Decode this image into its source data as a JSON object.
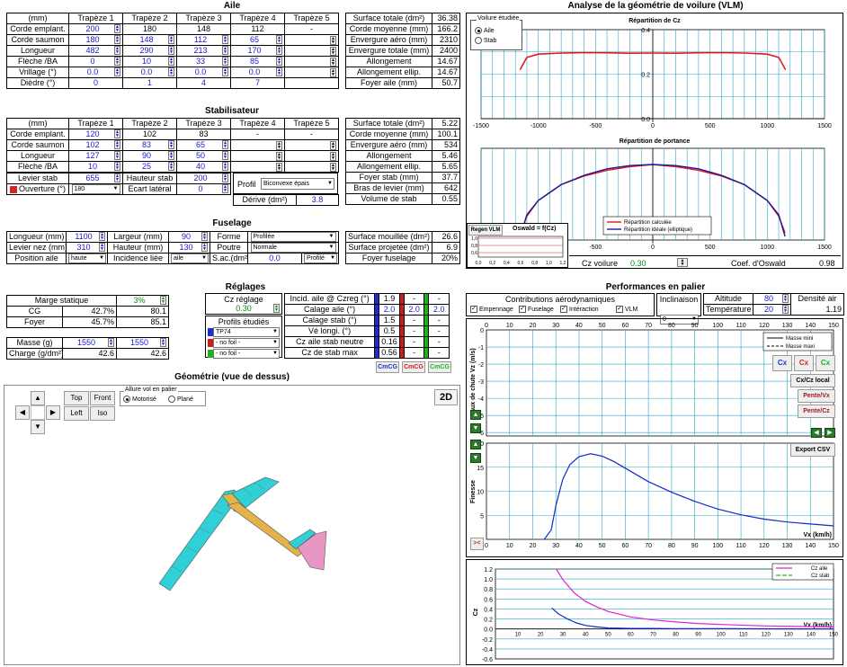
{
  "aile": {
    "title": "Aile",
    "headers": [
      "(mm)",
      "Trapèze 1",
      "Trapèze 2",
      "Trapèze 3",
      "Trapèze 4",
      "Trapèze 5"
    ],
    "rows": [
      {
        "label": "Corde emplant.",
        "values": [
          "200",
          "180",
          "148",
          "112",
          "-"
        ]
      },
      {
        "label": "Corde saumon",
        "values": [
          "180",
          "148",
          "112",
          "65",
          ""
        ]
      },
      {
        "label": "Longueur",
        "values": [
          "482",
          "290",
          "213",
          "170",
          ""
        ]
      },
      {
        "label": "Flèche /BA",
        "values": [
          "0",
          "10",
          "33",
          "85",
          ""
        ]
      },
      {
        "label": "Vrillage (°)",
        "values": [
          "0.0",
          "0.0",
          "0.0",
          "0.0",
          ""
        ]
      },
      {
        "label": "Dièdre (°)",
        "values": [
          "0",
          "1",
          "4",
          "7",
          ""
        ]
      }
    ],
    "summary": [
      [
        "Surface totale (dm²)",
        "36.38"
      ],
      [
        "Corde moyenne (mm)",
        "166.2"
      ],
      [
        "Envergure aéro (mm)",
        "2310"
      ],
      [
        "Envergure totale (mm)",
        "2400"
      ],
      [
        "Allongement",
        "14.67"
      ],
      [
        "Allongement ellip.",
        "14.67"
      ],
      [
        "Foyer aile (mm)",
        "50.7"
      ]
    ]
  },
  "stab": {
    "title": "Stabilisateur",
    "headers": [
      "(mm)",
      "Trapèze 1",
      "Trapèze 2",
      "Trapèze 3",
      "Trapèze 4",
      "Trapèze 5"
    ],
    "rows": [
      {
        "label": "Corde emplant.",
        "values": [
          "120",
          "102",
          "83",
          "-",
          "-"
        ]
      },
      {
        "label": "Corde saumon",
        "values": [
          "102",
          "83",
          "65",
          "",
          ""
        ]
      },
      {
        "label": "Longueur",
        "values": [
          "127",
          "90",
          "50",
          "",
          ""
        ]
      },
      {
        "label": "Flèche /BA",
        "values": [
          "10",
          "25",
          "40",
          "",
          ""
        ]
      }
    ],
    "levier_label": "Levier stab",
    "levier_value": "655",
    "hauteur_label": "Hauteur stab",
    "hauteur_value": "200",
    "ouverture_label": "Ouverture (°)",
    "ouverture_value": "180",
    "ecart_label": "Ecart latéral",
    "ecart_value": "0",
    "profil_label": "Profil",
    "profil_value": "Biconvexe épais",
    "derive_label": "Dérive (dm²)",
    "derive_value": "3.8",
    "summary": [
      [
        "Surface totale (dm²)",
        "5.22"
      ],
      [
        "Corde moyenne (mm)",
        "100.1"
      ],
      [
        "Envergure aéro (mm)",
        "534"
      ],
      [
        "Allongement",
        "5.46"
      ],
      [
        "Allongement ellip.",
        "5.65"
      ],
      [
        "Foyer stab (mm)",
        "37.7"
      ],
      [
        "Bras de levier (mm)",
        "642"
      ],
      [
        "Volume de stab",
        "0.55"
      ]
    ]
  },
  "fuselage": {
    "title": "Fuselage",
    "longueur_label": "Longueur (mm)",
    "longueur_value": "1100",
    "largeur_label": "Largeur (mm)",
    "largeur_value": "90",
    "forme_label": "Forme",
    "forme_value": "Profilée",
    "levier_label": "Levier nez (mm)",
    "levier_value": "310",
    "hauteur_label": "Hauteur (mm)",
    "hauteur_value": "130",
    "poutre_label": "Poutre",
    "poutre_value": "Normale",
    "position_label": "Position aile",
    "position_value": "haute",
    "incidence_label": "Incidence liée",
    "incidence_value": "aile",
    "sac_label": "S.ac.(dm²)",
    "sac_value": "0.0",
    "sac_sel": "Profilé",
    "summary": [
      [
        "Surface mouillée (dm²)",
        "26.6"
      ],
      [
        "Surface projetée (dm²)",
        "6.9"
      ],
      [
        "Foyer fuselage",
        "20%"
      ]
    ]
  },
  "statique": {
    "marge_label": "Marge statique",
    "marge_value": "3%",
    "cg_label": "CG",
    "cg_pct": "42.7%",
    "cg_mm": "80.1",
    "foyer_label": "Foyer",
    "foyer_pct": "45.7%",
    "foyer_mm": "85.1",
    "masse_label": "Masse (g)",
    "masse1": "1550",
    "masse2": "1550",
    "charge_label": "Charge (g/dm²)",
    "charge1": "42.6",
    "charge2": "42.6"
  },
  "reglages": {
    "title": "Réglages",
    "cz_label": "Cz réglage",
    "cz_value": "0.30",
    "profils_label": "Profils étudiés",
    "profils": [
      "TP74",
      "- no foil -",
      "- no foil -"
    ],
    "rows": [
      [
        "Incid. aile @ Czreg (°)",
        "1.9",
        "-",
        "-"
      ],
      [
        "Calage aile (°)",
        "2.0",
        "2.0",
        "2.0"
      ],
      [
        "Calage stab (°)",
        "1.5",
        "-",
        "-"
      ],
      [
        "Vé longi. (°)",
        "0.5",
        "-",
        "-"
      ],
      [
        "Cz aile stab neutre",
        "0.16",
        "-",
        "-"
      ],
      [
        "Cz de stab max",
        "0.56",
        "-",
        "-"
      ]
    ],
    "cmcg": [
      "CmCG",
      "CmCG",
      "CmCG"
    ]
  },
  "geometrie": {
    "title": "Géométrie (vue de dessus)",
    "views": [
      "Top",
      "Front",
      "Left",
      "Iso"
    ],
    "allure_label": "Allure vol en palier",
    "motorise": "Motorisé",
    "plane": "Plané",
    "mode": "2D"
  },
  "vlm": {
    "title": "Analyse de la géométrie de voilure (VLM)",
    "voilure_label": "Voilure étudiée",
    "opt_aile": "Aile",
    "opt_stab": "Stab",
    "cz_title": "Répartition de Cz",
    "portance_title": "Répartition de portance",
    "leg_calc": "Répartition calculée",
    "leg_ideal": "Répartition idéale (elliptique)",
    "regen": "Regen VLM",
    "oswald_fn": "Oswald = f(Cz)",
    "cz_voilure_label": "Cz voilure",
    "cz_voilure_value": "0.30",
    "oswald_label": "Coef. d'Oswald",
    "oswald_value": "0.98",
    "x_ticks": [
      "-1500",
      "-1000",
      "-500",
      "0",
      "500",
      "1000",
      "1500"
    ],
    "cz_y_ticks": [
      "0.4",
      "0.2",
      "0.0"
    ],
    "mini_x": [
      "0,0",
      "0,2",
      "0,4",
      "0,6",
      "0,8",
      "1,0",
      "1,2"
    ],
    "mini_y": [
      "1,0",
      "0,8",
      "0,6"
    ]
  },
  "perf": {
    "title": "Performances en palier",
    "contrib_label": "Contributions aérodynamiques",
    "contribs": [
      "Empennage",
      "Fuselage",
      "Intéraction",
      "VLM"
    ],
    "inclinaison_label": "Inclinaison",
    "inclinaison_value": "0",
    "altitude_label": "Altitude",
    "altitude_value": "80",
    "densite_label": "Densité air",
    "densite_value": "1.19",
    "temperature_label": "Température",
    "temperature_value": "20",
    "vz_ylabel": "Taux de chute Vz (m/s)",
    "vx_label": "Vx (km/h)",
    "leg_mini": "Masse mini",
    "leg_maxi": "Masse maxi",
    "x_ticks": [
      "0",
      "10",
      "20",
      "30",
      "40",
      "50",
      "60",
      "70",
      "80",
      "90",
      "100",
      "110",
      "120",
      "130",
      "140",
      "150"
    ],
    "vz_y_ticks": [
      "0",
      "-1",
      "-2",
      "-3",
      "-4",
      "-5",
      "-6"
    ],
    "fin_ylabel": "Finesse",
    "fin_y_ticks": [
      "20",
      "15",
      "10",
      "5",
      "0"
    ],
    "cz_ylabel": "Cz",
    "cz_y_ticks": [
      "1.2",
      "1.0",
      "0.8",
      "0.6",
      "0.4",
      "0.2",
      "0.0",
      "-0.2",
      "-0.4",
      "-0.6"
    ],
    "leg_cz_aile": "Cz aile",
    "leg_cz_stab": "Cz stab",
    "buttons": [
      "Cx",
      "Cx",
      "Cx",
      "Cx/Cz local",
      "Pente/Vx",
      "Pente/Cz",
      "Export CSV"
    ]
  },
  "chart_data": [
    {
      "type": "line",
      "title": "Répartition de Cz",
      "xlim": [
        -1500,
        1500
      ],
      "ylim": [
        0,
        0.4
      ],
      "series": [
        {
          "x": [
            -1160,
            -1100,
            -1000,
            -800,
            -600,
            -400,
            -200,
            0,
            200,
            400,
            600,
            800,
            1000,
            1100,
            1160
          ],
          "values": [
            0.22,
            0.275,
            0.29,
            0.295,
            0.297,
            0.296,
            0.294,
            0.295,
            0.294,
            0.296,
            0.297,
            0.295,
            0.29,
            0.275,
            0.22
          ]
        }
      ]
    },
    {
      "type": "line",
      "title": "Répartition de portance",
      "xlim": [
        -1500,
        1500
      ],
      "series": [
        {
          "name": "Répartition calculée",
          "x": [
            -1155,
            -1100,
            -1000,
            -800,
            -600,
            -400,
            -200,
            0,
            200,
            400,
            600,
            800,
            1000,
            1100,
            1155
          ],
          "values": [
            0.05,
            0.28,
            0.5,
            0.72,
            0.84,
            0.92,
            0.97,
            1.0,
            0.97,
            0.92,
            0.84,
            0.72,
            0.5,
            0.28,
            0.05
          ]
        },
        {
          "name": "Répartition idéale (elliptique)",
          "x": [
            -1155,
            -1100,
            -1000,
            -800,
            -600,
            -400,
            -200,
            0,
            200,
            400,
            600,
            800,
            1000,
            1100,
            1155
          ],
          "values": [
            0,
            0.3,
            0.5,
            0.72,
            0.85,
            0.94,
            0.985,
            1.0,
            0.985,
            0.94,
            0.85,
            0.72,
            0.5,
            0.3,
            0
          ]
        }
      ]
    },
    {
      "type": "line",
      "title": "Finesse",
      "xlabel": "Vx (km/h)",
      "ylabel": "Finesse",
      "xlim": [
        0,
        150
      ],
      "ylim": [
        0,
        20
      ],
      "series": [
        {
          "x": [
            25,
            28,
            30,
            33,
            36,
            40,
            45,
            50,
            55,
            60,
            70,
            80,
            90,
            100,
            110,
            120,
            130,
            140,
            150
          ],
          "values": [
            0,
            2,
            7,
            12.5,
            15.5,
            17.2,
            17.8,
            17.3,
            16.2,
            14.8,
            12,
            9.8,
            7.9,
            6.3,
            5.1,
            4.2,
            3.6,
            3.2,
            2.8
          ]
        }
      ]
    },
    {
      "type": "line",
      "xlabel": "Vx (km/h)",
      "ylabel": "Cz",
      "xlim": [
        0,
        150
      ],
      "ylim": [
        -0.6,
        1.2
      ],
      "series": [
        {
          "name": "Cz aile",
          "x": [
            27,
            30,
            35,
            40,
            45,
            50,
            60,
            70,
            80,
            90,
            100,
            120,
            150
          ],
          "values": [
            1.2,
            0.98,
            0.72,
            0.55,
            0.44,
            0.35,
            0.24,
            0.18,
            0.14,
            0.11,
            0.09,
            0.06,
            0.04
          ]
        },
        {
          "name": "Cz stab",
          "x": [
            25,
            28,
            32,
            36,
            40,
            45,
            50,
            60,
            70,
            80,
            100,
            150
          ],
          "values": [
            0.42,
            0.3,
            0.2,
            0.12,
            0.07,
            0.04,
            0.02,
            0.01,
            0.01,
            0.005,
            0.005,
            0.0
          ]
        }
      ]
    }
  ]
}
